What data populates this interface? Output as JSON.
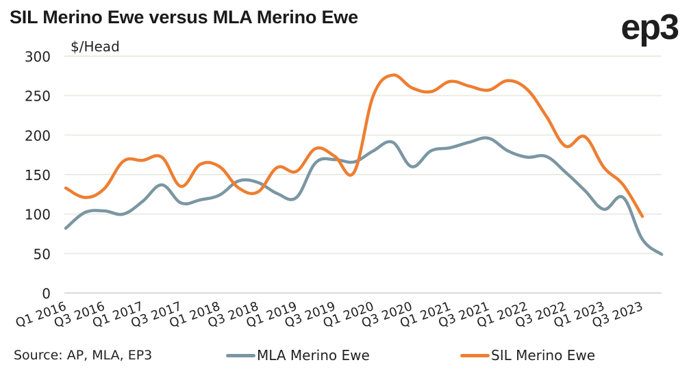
{
  "header": {
    "title": "SIL Merino Ewe versus MLA Merino Ewe",
    "logo": "ep3"
  },
  "footer": {
    "source": "Source: AP, MLA, EP3"
  },
  "colors": {
    "mla": "#7B96A3",
    "sil": "#EE7E31",
    "grid": "#ECEBE3",
    "axis": "#D9D9D9"
  },
  "chart_data": {
    "type": "line",
    "title": "SIL Merino Ewe versus MLA Merino Ewe",
    "ylabel": "$/Head",
    "xlabel": "",
    "ylim": [
      0,
      300
    ],
    "yticks": [
      0,
      50,
      100,
      150,
      200,
      250,
      300
    ],
    "grid": true,
    "legend": "bottom",
    "x": [
      "Q1 2016",
      "Q2 2016",
      "Q3 2016",
      "Q4 2016",
      "Q1 2017",
      "Q2 2017",
      "Q3 2017",
      "Q4 2017",
      "Q1 2018",
      "Q2 2018",
      "Q3 2018",
      "Q4 2018",
      "Q1 2019",
      "Q2 2019",
      "Q3 2019",
      "Q4 2019",
      "Q1 2020",
      "Q2 2020",
      "Q3 2020",
      "Q4 2020",
      "Q1 2021",
      "Q2 2021",
      "Q3 2021",
      "Q4 2021",
      "Q1 2022",
      "Q2 2022",
      "Q3 2022",
      "Q4 2022",
      "Q1 2023",
      "Q2 2023",
      "Q3 2023",
      "Q4 2023"
    ],
    "xtick_labels": [
      "Q1 2016",
      "Q3 2016",
      "Q1 2017",
      "Q3 2017",
      "Q1 2018",
      "Q3 2018",
      "Q1 2019",
      "Q3 2019",
      "Q1 2020",
      "Q3 2020",
      "Q1 2021",
      "Q3 2021",
      "Q1 2022",
      "Q3 2022",
      "Q1 2023",
      "Q3 2023"
    ],
    "series": [
      {
        "name": "MLA Merino Ewe",
        "color": "#7B96A3",
        "values": [
          82,
          102,
          104,
          100,
          116,
          137,
          114,
          118,
          124,
          142,
          140,
          126,
          121,
          165,
          169,
          166,
          180,
          191,
          160,
          180,
          184,
          191,
          196,
          180,
          172,
          173,
          153,
          130,
          106,
          121,
          68,
          49
        ]
      },
      {
        "name": "SIL Merino Ewe",
        "color": "#EE7E31",
        "values": [
          133,
          121,
          132,
          167,
          168,
          172,
          135,
          163,
          160,
          133,
          128,
          159,
          154,
          183,
          173,
          153,
          250,
          276,
          260,
          255,
          268,
          262,
          257,
          269,
          258,
          224,
          186,
          198,
          159,
          137,
          97,
          null
        ]
      }
    ]
  }
}
